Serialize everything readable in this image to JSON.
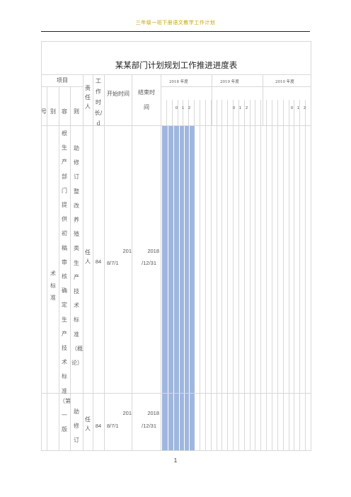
{
  "header": {
    "text": "三年级一班下册语文教学工作计划"
  },
  "table": {
    "title": "某某部门计划规划工作推进进度表",
    "group_header": "项目",
    "sub_headers": [
      "号",
      "别",
      "容",
      "则"
    ],
    "responsible": "责任人",
    "work_duration": "工作时长/d",
    "start_time": "开始时间",
    "end_time": "结束时间",
    "years": [
      "2018 年度",
      "2019 年度",
      "2010 年度"
    ],
    "month_digits": [
      "0",
      "1",
      "2"
    ],
    "category_text": "术标准",
    "rows": [
      {
        "content_text": "根生产部门提供初稿审核确定生产技术标准",
        "rule_text": "助修订整改养殖类生产技术标准（概论）",
        "owner": "任人",
        "duration": "84",
        "start": [
          "201",
          "8/7/1"
        ],
        "end": [
          "2018",
          "/12/31"
        ]
      },
      {
        "content_text": "（第一版",
        "rule_text": "助修订",
        "owner": "任人",
        "duration": "84",
        "start": [
          "201",
          "8/7/1"
        ],
        "end": [
          "2018",
          "/12/31"
        ]
      }
    ]
  },
  "footer": {
    "page_number": "1"
  }
}
